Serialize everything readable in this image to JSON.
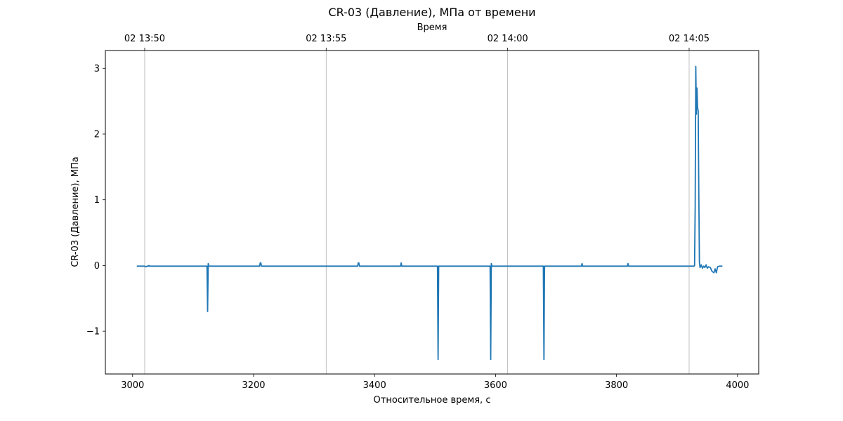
{
  "chart_data": {
    "type": "line",
    "title": "CR-03 (Давление), МПа от времени",
    "xlabel": "Относительное время, с",
    "ylabel": "CR-03 (Давление), МПа",
    "x2label": "Время",
    "xlim": [
      2955,
      4035
    ],
    "ylim": [
      -1.65,
      3.27
    ],
    "x_ticks": [
      3000,
      3200,
      3400,
      3600,
      3800,
      4000
    ],
    "x_tick_labels": [
      "3000",
      "3200",
      "3400",
      "3600",
      "3800",
      "4000"
    ],
    "y_ticks": [
      -1,
      0,
      1,
      2,
      3
    ],
    "y_tick_labels": [
      "−1",
      "0",
      "1",
      "2",
      "3"
    ],
    "x2_ticks": [
      3020,
      3320,
      3620,
      3920
    ],
    "x2_tick_labels": [
      "02 13:50",
      "02 13:55",
      "02 14:00",
      "02 14:05"
    ],
    "grid": "vertical lines at top axis ticks",
    "line_color": "#1f77b4",
    "series": [
      {
        "name": "",
        "points": [
          [
            3007,
            -0.01
          ],
          [
            3020,
            -0.01
          ],
          [
            3022,
            -0.02
          ],
          [
            3024,
            -0.01
          ],
          [
            3026,
            -0.01
          ],
          [
            3027,
            0.0
          ],
          [
            3028,
            -0.01
          ],
          [
            3123,
            -0.01
          ],
          [
            3124,
            -0.7
          ],
          [
            3125,
            0.03
          ],
          [
            3126,
            -0.01
          ],
          [
            3210,
            -0.01
          ],
          [
            3211,
            0.04
          ],
          [
            3212,
            0.04
          ],
          [
            3213,
            -0.01
          ],
          [
            3372,
            -0.01
          ],
          [
            3373,
            0.04
          ],
          [
            3374,
            0.04
          ],
          [
            3375,
            -0.01
          ],
          [
            3443,
            -0.01
          ],
          [
            3444,
            0.04
          ],
          [
            3445,
            -0.01
          ],
          [
            3504,
            -0.01
          ],
          [
            3505,
            -1.43
          ],
          [
            3506,
            -0.01
          ],
          [
            3591,
            -0.01
          ],
          [
            3592,
            -1.43
          ],
          [
            3593,
            0.03
          ],
          [
            3594,
            -0.01
          ],
          [
            3679,
            -0.01
          ],
          [
            3680,
            -1.43
          ],
          [
            3681,
            -0.01
          ],
          [
            3742,
            -0.01
          ],
          [
            3743,
            0.03
          ],
          [
            3744,
            -0.01
          ],
          [
            3818,
            -0.01
          ],
          [
            3819,
            0.03
          ],
          [
            3820,
            -0.01
          ],
          [
            3928,
            -0.01
          ],
          [
            3929,
            0.0
          ],
          [
            3930,
            0.9
          ],
          [
            3931,
            3.03
          ],
          [
            3932,
            2.3
          ],
          [
            3933,
            2.7
          ],
          [
            3934,
            2.4
          ],
          [
            3935,
            2.35
          ],
          [
            3936,
            1.1
          ],
          [
            3937,
            0.05
          ],
          [
            3938,
            -0.03
          ],
          [
            3940,
            0.01
          ],
          [
            3942,
            -0.04
          ],
          [
            3944,
            -0.01
          ],
          [
            3946,
            -0.03
          ],
          [
            3948,
            0.01
          ],
          [
            3950,
            -0.04
          ],
          [
            3952,
            -0.02
          ],
          [
            3955,
            -0.03
          ],
          [
            3958,
            -0.09
          ],
          [
            3961,
            -0.11
          ],
          [
            3963,
            -0.05
          ],
          [
            3965,
            -0.11
          ],
          [
            3967,
            -0.02
          ],
          [
            3970,
            -0.01
          ],
          [
            3975,
            -0.01
          ]
        ]
      }
    ]
  }
}
